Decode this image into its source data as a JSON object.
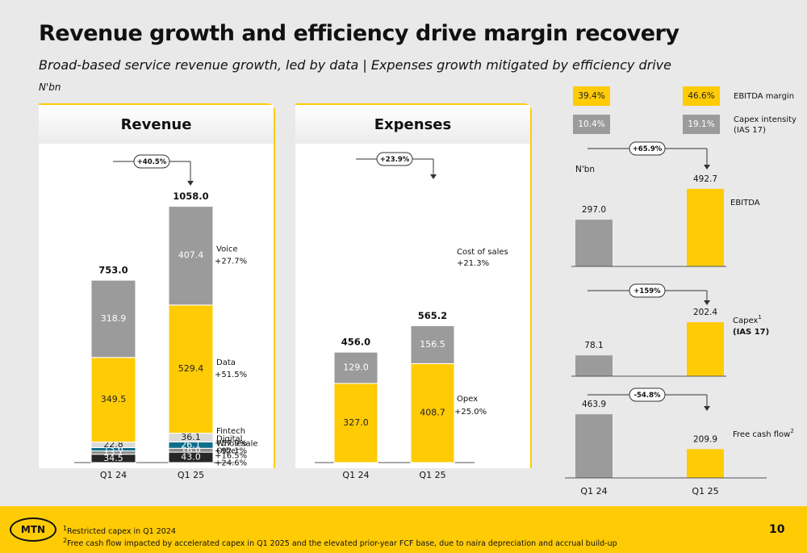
{
  "header": {
    "title": "Revenue growth and efficiency drive margin recovery",
    "subtitle": "Broad-based service revenue growth, led by data | Expenses growth mitigated by efficiency drive",
    "unit": "N'bn"
  },
  "colors": {
    "yellow": "#ffcb05",
    "grey": "#9b9b9b",
    "light_grey": "#dadada",
    "teal": "#0f6e8c",
    "mid_grey": "#8c8c8c",
    "black": "#262626"
  },
  "chart_data": [
    {
      "type": "bar",
      "stacked": true,
      "title": "Revenue",
      "categories": [
        "Q1 24",
        "Q1 25"
      ],
      "totals": [
        753.0,
        1058.0
      ],
      "growth_label": "+40.5%",
      "series": [
        {
          "name": "Other",
          "values": [
            34.5,
            43.0
          ],
          "growth": "+24.6%",
          "color": "#262626"
        },
        {
          "name": "Wholesale",
          "values": [
            13.7,
            16.0
          ],
          "growth": "+16.5%",
          "color": "#8c8c8c"
        },
        {
          "name": "Digital",
          "values": [
            13.6,
            26.1
          ],
          "growth": "+92.1%",
          "color": "#0f6e8c"
        },
        {
          "name": "Fintech",
          "values": [
            22.8,
            36.1
          ],
          "growth": "+57.9%",
          "color": "#dadada"
        },
        {
          "name": "Data",
          "values": [
            349.5,
            529.4
          ],
          "growth": "+51.5%",
          "color": "#ffcb05"
        },
        {
          "name": "Voice",
          "values": [
            318.9,
            407.4
          ],
          "growth": "+27.7%",
          "color": "#9b9b9b"
        }
      ]
    },
    {
      "type": "bar",
      "stacked": true,
      "title": "Expenses",
      "categories": [
        "Q1 24",
        "Q1 25"
      ],
      "totals": [
        456.0,
        565.2
      ],
      "growth_label": "+23.9%",
      "series": [
        {
          "name": "Opex",
          "values": [
            327.0,
            408.7
          ],
          "growth": "+25.0%",
          "color": "#ffcb05"
        },
        {
          "name": "Cost of sales",
          "values": [
            129.0,
            156.5
          ],
          "growth": "+21.3%",
          "color": "#9b9b9b"
        }
      ]
    },
    {
      "type": "bar",
      "title": "",
      "unit": "N'bn",
      "categories": [
        "Q1 24",
        "Q1 25"
      ],
      "ratios": [
        {
          "label": "EBITDA margin",
          "values": [
            "39.4%",
            "46.6%"
          ]
        },
        {
          "label": "Capex intensity",
          "label2": "(IAS 17)",
          "values": [
            "10.4%",
            "19.1%"
          ]
        }
      ],
      "panels": [
        {
          "name": "EBITDA",
          "values": [
            297.0,
            492.7
          ],
          "growth_label": "+65.9%"
        },
        {
          "name": "Capex",
          "sup": "1",
          "name2": "(IAS 17)",
          "values": [
            78.1,
            202.4
          ],
          "growth_label": "+159%"
        },
        {
          "name": "Free cash flow",
          "sup": "2",
          "values": [
            463.9,
            209.9
          ],
          "growth_label": "-54.8%"
        }
      ]
    }
  ],
  "footer": {
    "logo": "MTN",
    "footnote1_sup": "1",
    "footnote1": "Restricted capex in Q1 2024",
    "footnote2_sup": "2",
    "footnote2": "Free cash flow impacted by accelerated capex in Q1 2025 and the elevated prior-year FCF base, due to naira depreciation and accrual build-up",
    "page_number": "10"
  }
}
